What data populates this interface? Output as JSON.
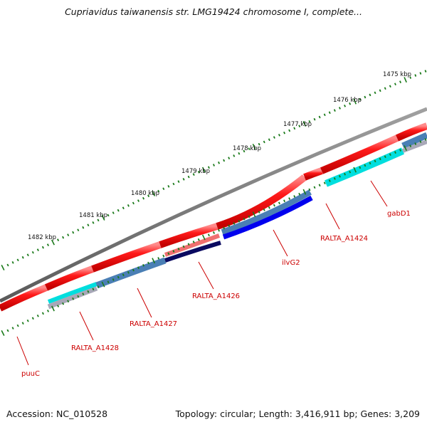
{
  "map": {
    "title": "Cupriavidus taiwanensis str. LMG19424 chromosome I, complete...",
    "accession": "Accession: NC_010528",
    "topology": "Topology: circular; Length: 3,416,911 bp; Genes: 3,209"
  },
  "ruler": {
    "labels": [
      "1475 kbp",
      "1476 kbp",
      "1477 kbp",
      "1478 kbp",
      "1479 kbp",
      "1480 kbp",
      "1481 kbp",
      "1482 kbp"
    ]
  },
  "genes": {
    "puuC": "puuC",
    "RALTA_A1428": "RALTA_A1428",
    "RALTA_A1427": "RALTA_A1427",
    "RALTA_A1426": "RALTA_A1426",
    "ilvG2": "ilvG2",
    "RALTA_A1424": "RALTA_A1424",
    "gabD1": "gabD1"
  },
  "colors": {
    "backbone": "#7a7a7a",
    "cds": "#ff0000",
    "ruler_tick": "#1a7a1a",
    "label_line": "#cc0000",
    "blast_steelblue": "#4a7fb5",
    "blast_cyan": "#00dede",
    "blast_blue": "#0000ee",
    "blast_navy": "#0a0a60",
    "blast_salmon": "#f07070",
    "blast_gray": "#a8a8b8"
  }
}
